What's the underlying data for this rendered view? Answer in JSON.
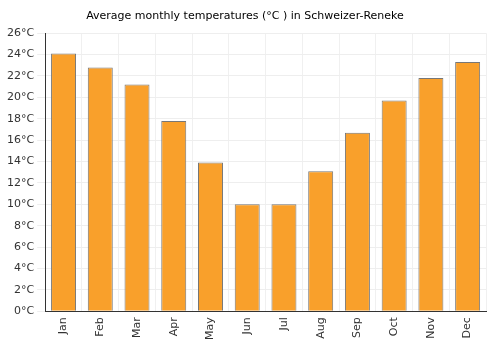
{
  "chart_data": {
    "type": "bar",
    "title": "Average monthly temperatures (°C ) in Schweizer-Reneke",
    "categories": [
      "Jan",
      "Feb",
      "Mar",
      "Apr",
      "May",
      "Jun",
      "Jul",
      "Aug",
      "Sep",
      "Oct",
      "Nov",
      "Dec"
    ],
    "values": [
      24.1,
      22.8,
      21.2,
      17.8,
      13.9,
      10.0,
      10.0,
      13.1,
      16.7,
      19.7,
      21.8,
      23.3
    ],
    "color": "#f9a02b",
    "ylim": [
      0,
      26
    ],
    "yticks": [
      {
        "value": 0,
        "label": "0°C"
      },
      {
        "value": 2,
        "label": "2°C"
      },
      {
        "value": 4,
        "label": "4°C"
      },
      {
        "value": 6,
        "label": "6°C"
      },
      {
        "value": 8,
        "label": "8°C"
      },
      {
        "value": 10,
        "label": "10°C"
      },
      {
        "value": 12,
        "label": "12°C"
      },
      {
        "value": 14,
        "label": "14°C"
      },
      {
        "value": 16,
        "label": "16°C"
      },
      {
        "value": 18,
        "label": "18°C"
      },
      {
        "value": 20,
        "label": "20°C"
      },
      {
        "value": 22,
        "label": "22°C"
      },
      {
        "value": 24,
        "label": "24°C"
      },
      {
        "value": 26,
        "label": "26°C"
      }
    ],
    "grid": true
  }
}
